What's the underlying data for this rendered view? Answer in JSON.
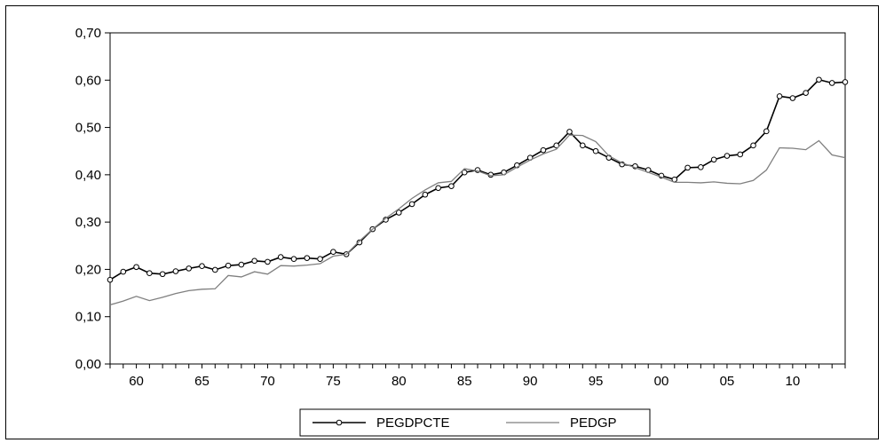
{
  "chart_data": {
    "type": "line",
    "title": "",
    "xlabel": "",
    "ylabel": "",
    "ylim": [
      0,
      0.7
    ],
    "yticks": [
      "0,00",
      "0,10",
      "0,20",
      "0,30",
      "0,40",
      "0,50",
      "0,60",
      "0,70"
    ],
    "xtick_labels": [
      "60",
      "65",
      "70",
      "75",
      "80",
      "85",
      "90",
      "95",
      "00",
      "05",
      "10"
    ],
    "x": [
      1958,
      1959,
      1960,
      1961,
      1962,
      1963,
      1964,
      1965,
      1966,
      1967,
      1968,
      1969,
      1970,
      1971,
      1972,
      1973,
      1974,
      1975,
      1976,
      1977,
      1978,
      1979,
      1980,
      1981,
      1982,
      1983,
      1984,
      1985,
      1986,
      1987,
      1988,
      1989,
      1990,
      1991,
      1992,
      1993,
      1994,
      1995,
      1996,
      1997,
      1998,
      1999,
      2000,
      2001,
      2002,
      2003,
      2004,
      2005,
      2006,
      2007,
      2008,
      2009,
      2010,
      2011,
      2012,
      2013,
      2014
    ],
    "grid": false,
    "legend_position": "bottom-center",
    "series": [
      {
        "name": "PEGDPCTE",
        "color": "#000000",
        "marker": "circle",
        "values": [
          0.178,
          0.195,
          0.205,
          0.192,
          0.19,
          0.196,
          0.202,
          0.207,
          0.199,
          0.208,
          0.21,
          0.218,
          0.216,
          0.226,
          0.222,
          0.224,
          0.222,
          0.237,
          0.232,
          0.257,
          0.285,
          0.305,
          0.32,
          0.338,
          0.358,
          0.372,
          0.376,
          0.405,
          0.41,
          0.4,
          0.405,
          0.42,
          0.436,
          0.452,
          0.462,
          0.491,
          0.462,
          0.45,
          0.436,
          0.422,
          0.418,
          0.41,
          0.398,
          0.39,
          0.415,
          0.416,
          0.432,
          0.44,
          0.443,
          0.462,
          0.492,
          0.566,
          0.562,
          0.573,
          0.601,
          0.594,
          0.596
        ]
      },
      {
        "name": "PEDGP",
        "color": "#7f7f7f",
        "marker": "none",
        "values": [
          0.125,
          0.133,
          0.143,
          0.134,
          0.141,
          0.149,
          0.155,
          0.158,
          0.159,
          0.187,
          0.184,
          0.195,
          0.19,
          0.208,
          0.207,
          0.209,
          0.212,
          0.228,
          0.232,
          0.26,
          0.285,
          0.308,
          0.328,
          0.35,
          0.368,
          0.383,
          0.386,
          0.413,
          0.408,
          0.398,
          0.4,
          0.416,
          0.431,
          0.444,
          0.454,
          0.484,
          0.483,
          0.47,
          0.44,
          0.425,
          0.415,
          0.405,
          0.395,
          0.384,
          0.384,
          0.383,
          0.385,
          0.382,
          0.381,
          0.388,
          0.41,
          0.457,
          0.456,
          0.453,
          0.472,
          0.442,
          0.436
        ]
      }
    ]
  }
}
